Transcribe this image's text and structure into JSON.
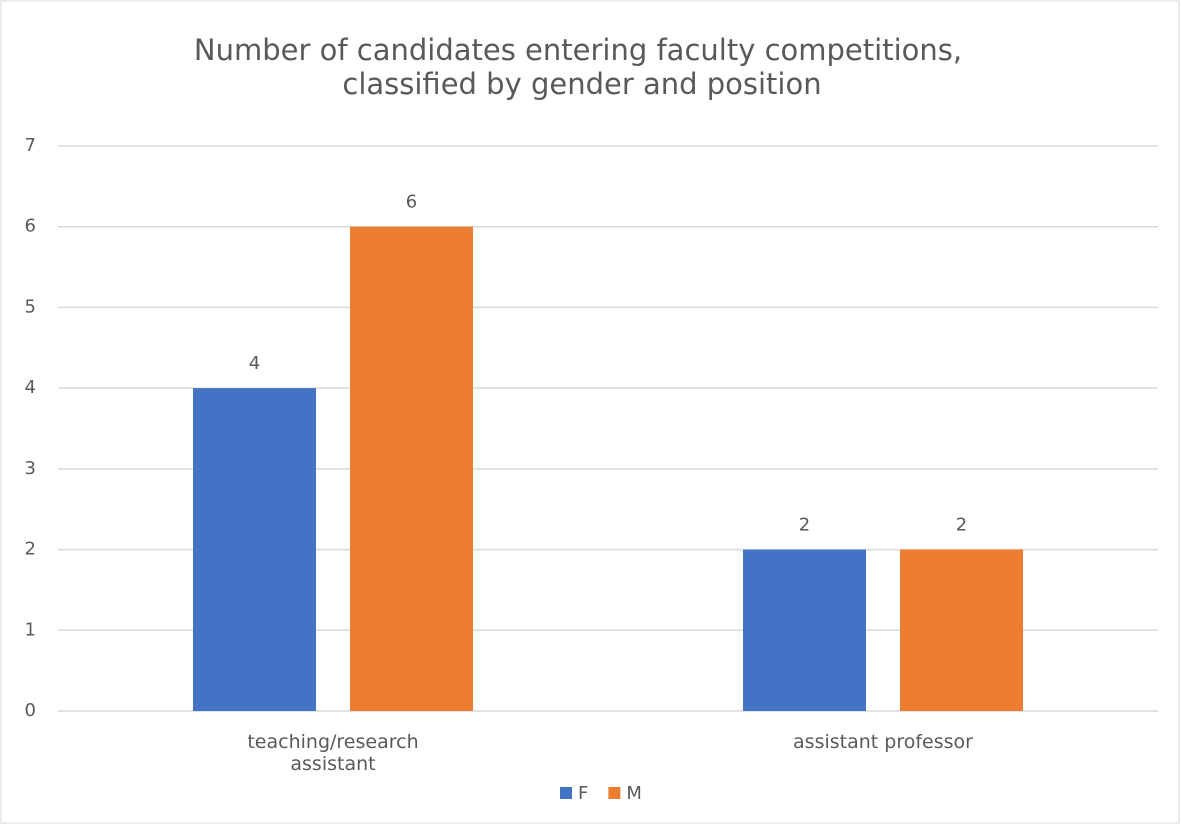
{
  "chart_data": {
    "type": "bar",
    "title": [
      "Number of candidates entering faculty competitions,",
      "classified by gender and position"
    ],
    "categories": [
      "teaching/research assistant",
      "assistant professor"
    ],
    "series": [
      {
        "name": "F",
        "color": "#4472c4",
        "values": [
          4,
          2
        ]
      },
      {
        "name": "M",
        "color": "#ed7d31",
        "values": [
          6,
          2
        ]
      }
    ],
    "ylim": [
      0,
      7
    ],
    "yticks": [
      0,
      1,
      2,
      3,
      4,
      5,
      6,
      7
    ],
    "grid": true,
    "legend": "bottom"
  }
}
